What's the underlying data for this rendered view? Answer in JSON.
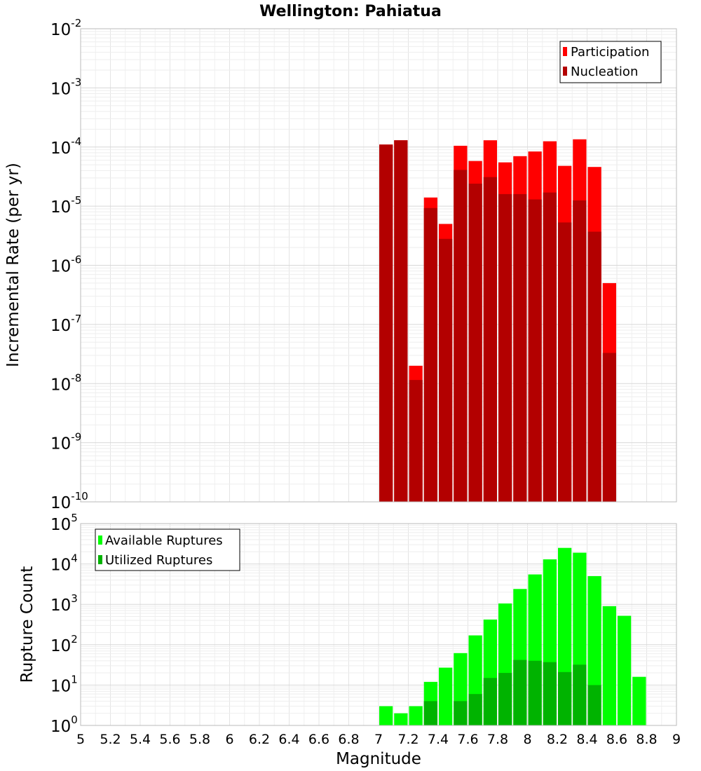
{
  "chart_data": [
    {
      "type": "bar",
      "title": "Wellington: Pahiatua",
      "xlabel": "Magnitude",
      "ylabel": "Incremental Rate (per yr)",
      "yscale": "log",
      "ylim_exponent": [
        -10,
        -2
      ],
      "xlim": [
        5,
        9
      ],
      "bin_width": 0.1,
      "legend_position": "top-right",
      "grid": true,
      "categories": [
        7.05,
        7.15,
        7.25,
        7.35,
        7.45,
        7.55,
        7.65,
        7.75,
        7.85,
        7.95,
        8.05,
        8.15,
        8.25,
        8.35,
        8.45,
        8.55
      ],
      "series": [
        {
          "name": "Participation",
          "color": "#ff0000",
          "values": [
            0.00011,
            0.00013,
            2e-08,
            1.4e-05,
            5e-06,
            0.000105,
            5.8e-05,
            0.00013,
            5.5e-05,
            7e-05,
            8.4e-05,
            0.000125,
            4.8e-05,
            0.000135,
            4.6e-05,
            5e-07
          ]
        },
        {
          "name": "Nucleation",
          "color": "#b30000",
          "values": [
            0.00011,
            0.00013,
            1.15e-08,
            9.3e-06,
            2.8e-06,
            4.1e-05,
            2.4e-05,
            3.1e-05,
            1.6e-05,
            1.6e-05,
            1.3e-05,
            1.7e-05,
            5.3e-06,
            1.25e-05,
            3.7e-06,
            3.3e-08
          ]
        }
      ]
    },
    {
      "type": "bar",
      "xlabel": "Magnitude",
      "ylabel": "Rupture Count",
      "yscale": "log",
      "ylim_exponent": [
        0,
        5
      ],
      "xlim": [
        5,
        9
      ],
      "bin_width": 0.1,
      "legend_position": "top-left",
      "grid": true,
      "categories": [
        7.05,
        7.15,
        7.25,
        7.35,
        7.45,
        7.55,
        7.65,
        7.75,
        7.85,
        7.95,
        8.05,
        8.15,
        8.25,
        8.35,
        8.45,
        8.55,
        8.65,
        8.75
      ],
      "series": [
        {
          "name": "Available Ruptures",
          "color": "#00ff00",
          "values": [
            3,
            2,
            3,
            12,
            27,
            62,
            170,
            420,
            1050,
            2400,
            5500,
            13000,
            25000,
            19000,
            5000,
            900,
            520,
            16
          ]
        },
        {
          "name": "Utilized Ruptures",
          "color": "#00b300",
          "values": [
            1,
            1,
            1,
            4,
            1,
            4,
            6,
            15,
            20,
            42,
            40,
            37,
            21,
            32,
            10,
            1,
            0,
            0
          ]
        }
      ],
      "x_ticks": [
        "5",
        "5.2",
        "5.4",
        "5.6",
        "5.8",
        "6",
        "6.2",
        "6.4",
        "6.6",
        "6.8",
        "7",
        "7.2",
        "7.4",
        "7.6",
        "7.8",
        "8",
        "8.2",
        "8.4",
        "8.6",
        "8.8",
        "9"
      ]
    }
  ]
}
